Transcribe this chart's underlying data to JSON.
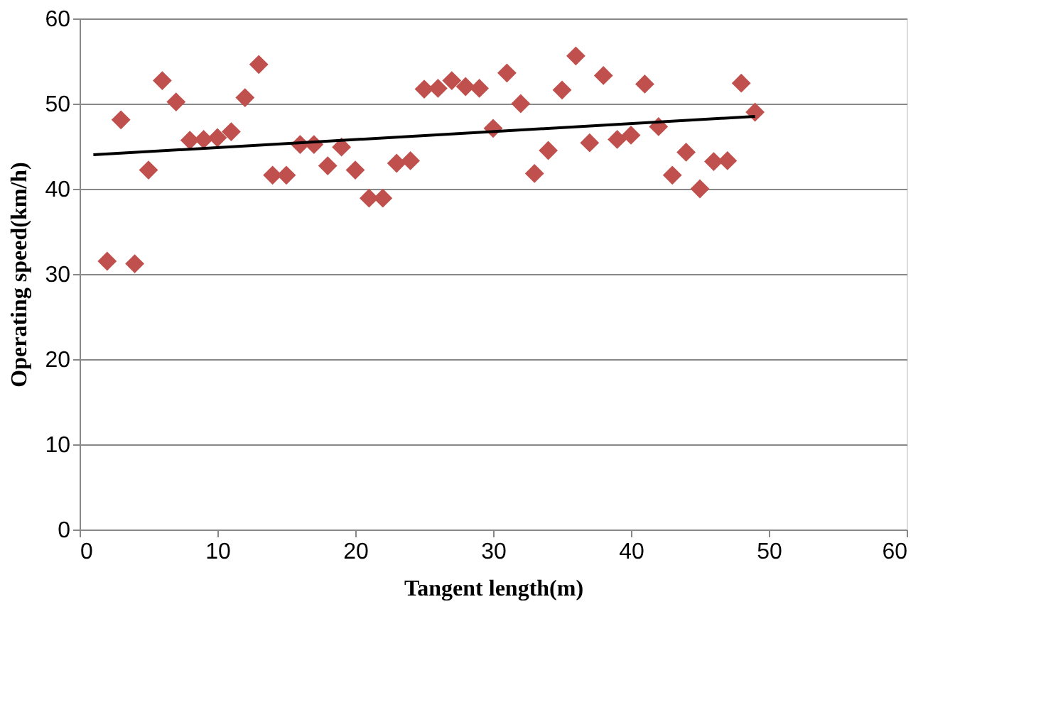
{
  "chart_data": {
    "type": "scatter",
    "xlabel": "Tangent length(m)",
    "ylabel": "Operating speed(km/h)",
    "xlim": [
      0,
      60
    ],
    "xticks": [
      0,
      10,
      20,
      30,
      40,
      50,
      60
    ],
    "ylim": [
      0,
      60
    ],
    "yticks": [
      0,
      10,
      20,
      30,
      40,
      50,
      60
    ],
    "grid": "y",
    "series": [
      {
        "marker": "diamond",
        "color": "#c0504d",
        "x": [
          2,
          3,
          4,
          5,
          6,
          7,
          8,
          9,
          10,
          11,
          12,
          13,
          14,
          15,
          16,
          17,
          18,
          19,
          20,
          21,
          22,
          23,
          24,
          25,
          26,
          27,
          28,
          29,
          30,
          31,
          32,
          33,
          34,
          35,
          36,
          37,
          38,
          39,
          40,
          41,
          42,
          43,
          44,
          45,
          46,
          47,
          48,
          49
        ],
        "values": [
          31.5,
          48.1,
          31.2,
          42.2,
          52.7,
          50.2,
          45.7,
          45.8,
          46,
          46.7,
          50.7,
          54.6,
          41.6,
          41.6,
          45.2,
          45.2,
          42.7,
          44.9,
          42.2,
          38.9,
          38.9,
          43,
          43.3,
          51.7,
          51.8,
          52.7,
          52,
          51.8,
          47.1,
          53.6,
          50,
          41.8,
          44.5,
          51.6,
          55.6,
          45.4,
          53.3,
          45.8,
          46.3,
          52.3,
          47.3,
          41.6,
          44.3,
          40,
          43.2,
          43.3,
          52.4,
          49
        ]
      },
      {
        "type": "line",
        "marker": "none",
        "color": "#000000",
        "x": [
          1,
          49
        ],
        "values": [
          44,
          48.5
        ]
      }
    ]
  }
}
